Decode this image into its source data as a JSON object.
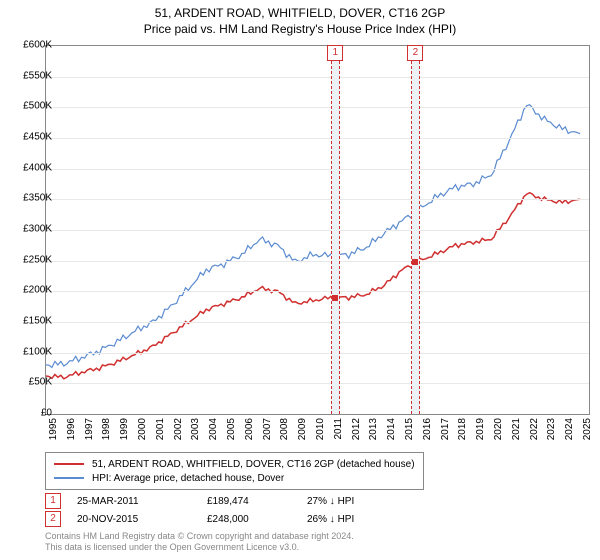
{
  "title_line1": "51, ARDENT ROAD, WHITFIELD, DOVER, CT16 2GP",
  "title_line2": "Price paid vs. HM Land Registry's House Price Index (HPI)",
  "chart": {
    "type": "line",
    "x_start": 1995,
    "x_end": 2025.5,
    "y_start": 0,
    "y_end": 600,
    "y_tick_step": 50,
    "y_tick_prefix": "£",
    "y_tick_suffix": "K",
    "x_tick_step": 1,
    "background_color": "#ffffff",
    "grid_color": "#e8e8e8",
    "border_color": "#888888",
    "series": [
      {
        "name": "prop",
        "label": "51, ARDENT ROAD, WHITFIELD, DOVER, CT16 2GP (detached house)",
        "color": "#d03030",
        "width": 1.5,
        "data": [
          [
            1995,
            62
          ],
          [
            1996,
            60
          ],
          [
            1997,
            68
          ],
          [
            1998,
            75
          ],
          [
            1999,
            85
          ],
          [
            2000,
            97
          ],
          [
            2001,
            110
          ],
          [
            2002,
            130
          ],
          [
            2003,
            150
          ],
          [
            2004,
            170
          ],
          [
            2005,
            180
          ],
          [
            2006,
            190
          ],
          [
            2007,
            205
          ],
          [
            2008,
            200
          ],
          [
            2009,
            180
          ],
          [
            2010,
            185
          ],
          [
            2011,
            190
          ],
          [
            2012,
            190
          ],
          [
            2013,
            195
          ],
          [
            2014,
            210
          ],
          [
            2015,
            235
          ],
          [
            2016,
            250
          ],
          [
            2017,
            262
          ],
          [
            2018,
            275
          ],
          [
            2019,
            280
          ],
          [
            2020,
            285
          ],
          [
            2021,
            320
          ],
          [
            2022,
            360
          ],
          [
            2023,
            350
          ],
          [
            2024,
            345
          ],
          [
            2025,
            350
          ]
        ]
      },
      {
        "name": "hpi",
        "label": "HPI: Average price, detached house, Dover",
        "color": "#5b8bd0",
        "width": 1.2,
        "data": [
          [
            1995,
            80
          ],
          [
            1996,
            82
          ],
          [
            1997,
            92
          ],
          [
            1998,
            103
          ],
          [
            1999,
            118
          ],
          [
            2000,
            135
          ],
          [
            2001,
            150
          ],
          [
            2002,
            175
          ],
          [
            2003,
            205
          ],
          [
            2004,
            235
          ],
          [
            2005,
            245
          ],
          [
            2006,
            260
          ],
          [
            2007,
            285
          ],
          [
            2008,
            275
          ],
          [
            2009,
            248
          ],
          [
            2010,
            260
          ],
          [
            2011,
            258
          ],
          [
            2012,
            260
          ],
          [
            2013,
            272
          ],
          [
            2014,
            295
          ],
          [
            2015,
            315
          ],
          [
            2016,
            335
          ],
          [
            2017,
            355
          ],
          [
            2018,
            370
          ],
          [
            2019,
            375
          ],
          [
            2020,
            390
          ],
          [
            2021,
            445
          ],
          [
            2022,
            505
          ],
          [
            2023,
            480
          ],
          [
            2024,
            465
          ],
          [
            2025,
            457
          ]
        ]
      }
    ],
    "events": [
      {
        "num": "1",
        "x_start": 2011.0,
        "x_end": 2011.5,
        "date": "25-MAR-2011",
        "price": "£189,474",
        "delta": "27% ↓ HPI",
        "sale_y": 189
      },
      {
        "num": "2",
        "x_start": 2015.5,
        "x_end": 2016.0,
        "date": "20-NOV-2015",
        "price": "£248,000",
        "delta": "26% ↓ HPI",
        "sale_y": 248
      }
    ]
  },
  "copyright_line1": "Contains HM Land Registry data © Crown copyright and database right 2024.",
  "copyright_line2": "This data is licensed under the Open Government Licence v3.0."
}
